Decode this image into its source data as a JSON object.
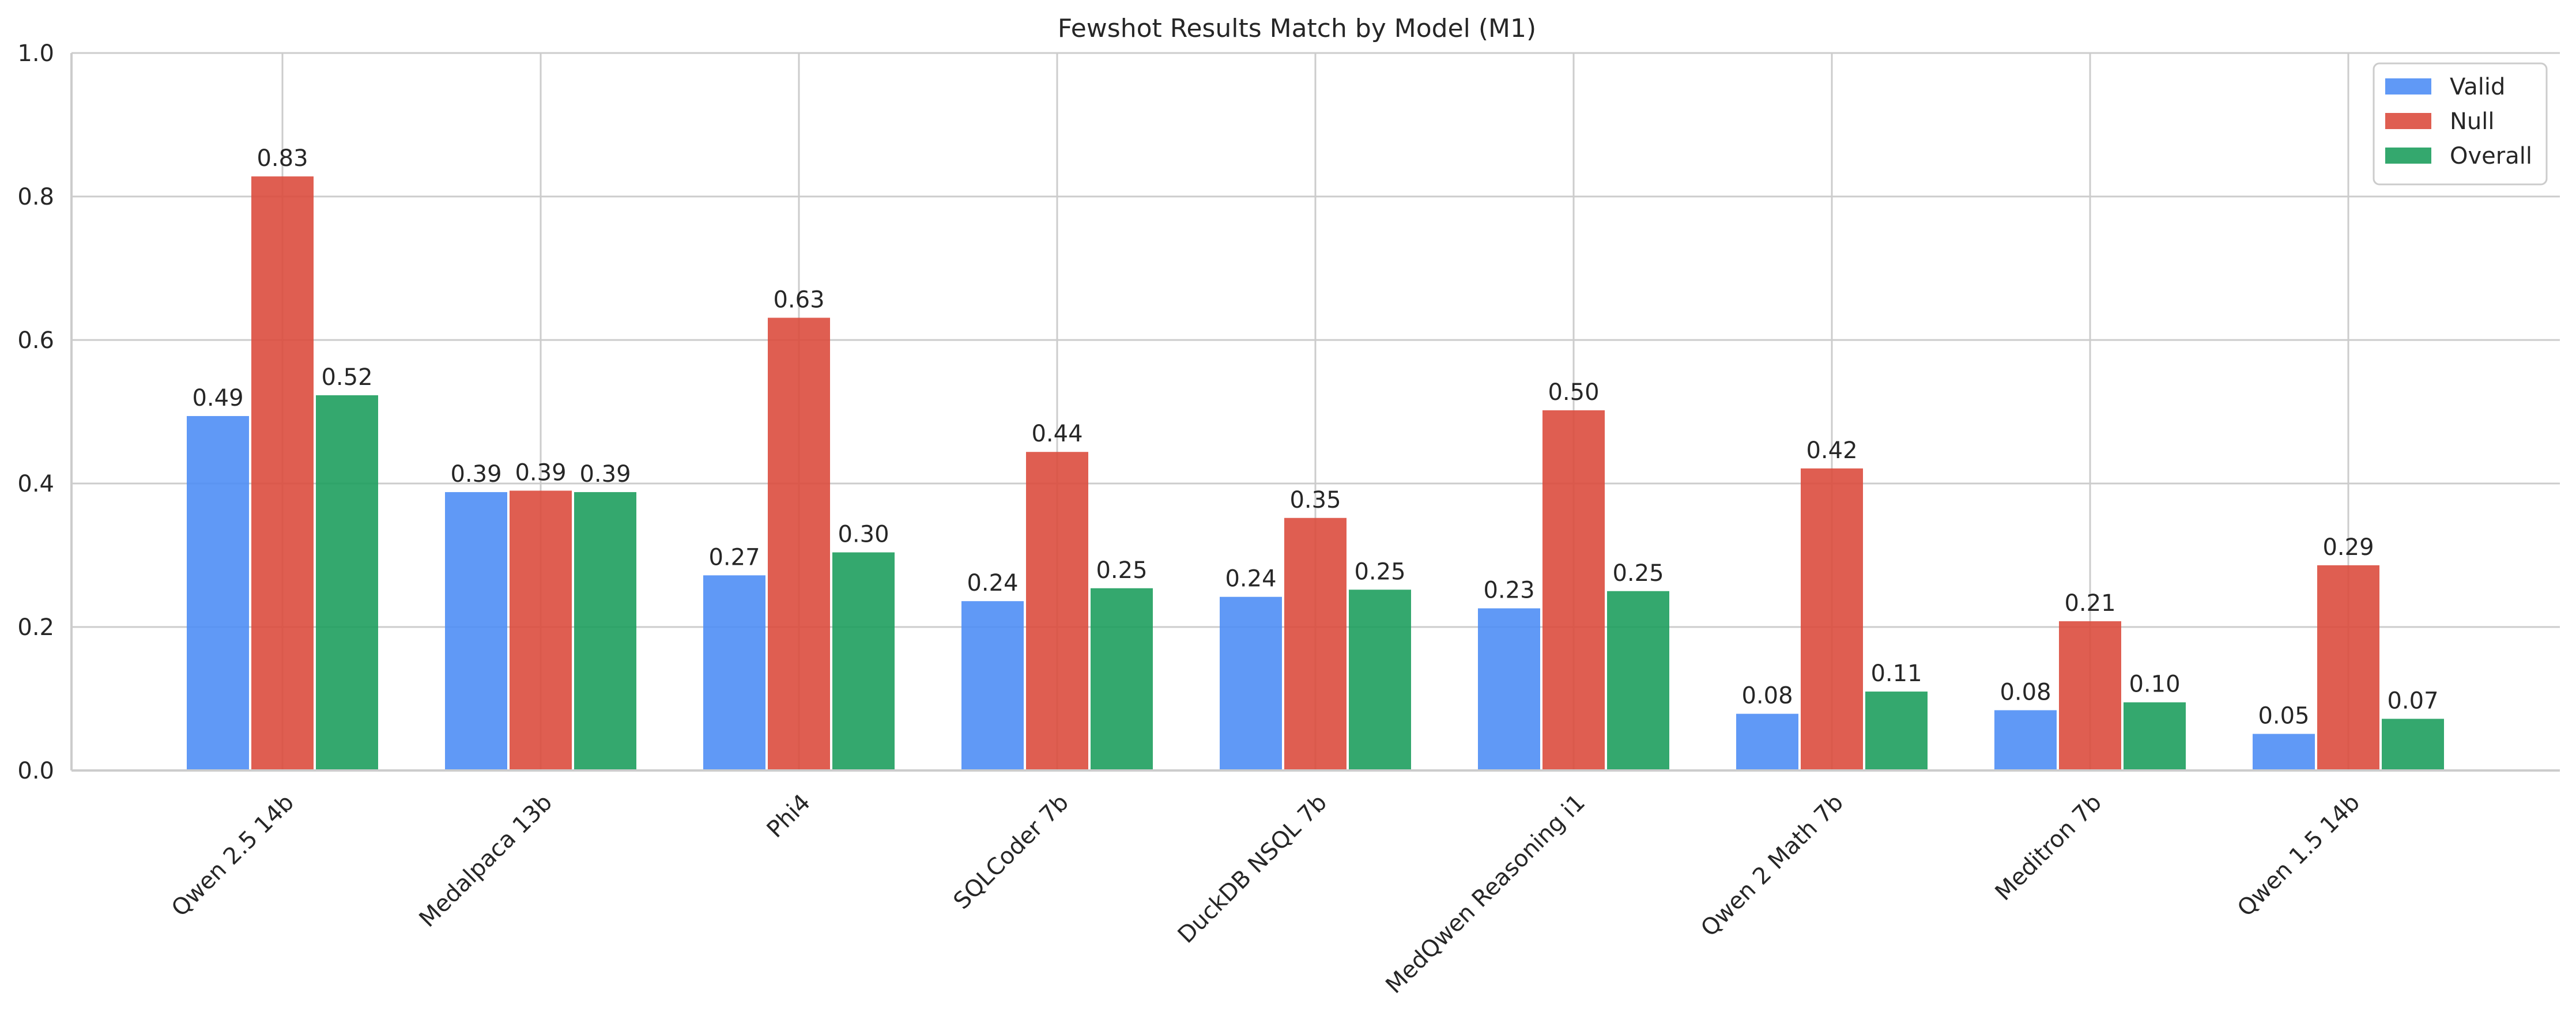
{
  "chart_data": {
    "type": "bar",
    "title": "Fewshot Results Match by Model (M1)",
    "xlabel": "",
    "ylabel": "",
    "ylim": [
      0,
      1.0
    ],
    "yticks": [
      0.0,
      0.2,
      0.4,
      0.6,
      0.8,
      1.0
    ],
    "ytick_labels": [
      "0.0",
      "0.2",
      "0.4",
      "0.6",
      "0.8",
      "1.0"
    ],
    "grid": true,
    "legend_position": "top-right",
    "categories": [
      "Qwen 2.5 14b",
      "Medalpaca 13b",
      "Phi4",
      "SQLCoder 7b",
      "DuckDB NSQL 7b",
      "MedQwen Reasoning i1",
      "Qwen 2 Math 7b",
      "Meditron 7b",
      "Qwen 1.5 14b"
    ],
    "series": [
      {
        "name": "Valid",
        "color": "#4f8ef5",
        "values": [
          0.494,
          0.388,
          0.272,
          0.236,
          0.242,
          0.226,
          0.079,
          0.084,
          0.051
        ],
        "labels": [
          "0.49",
          "0.39",
          "0.27",
          "0.24",
          "0.24",
          "0.23",
          "0.08",
          "0.08",
          "0.05"
        ]
      },
      {
        "name": "Null",
        "color": "#dc4c3e",
        "values": [
          0.828,
          0.39,
          0.631,
          0.444,
          0.352,
          0.502,
          0.421,
          0.208,
          0.286
        ],
        "labels": [
          "0.83",
          "0.39",
          "0.63",
          "0.44",
          "0.35",
          "0.50",
          "0.42",
          "0.21",
          "0.29"
        ]
      },
      {
        "name": "Overall",
        "color": "#1e9e5e",
        "values": [
          0.523,
          0.388,
          0.304,
          0.254,
          0.252,
          0.25,
          0.11,
          0.095,
          0.072
        ],
        "labels": [
          "0.52",
          "0.39",
          "0.30",
          "0.25",
          "0.25",
          "0.25",
          "0.11",
          "0.10",
          "0.07"
        ]
      }
    ]
  }
}
